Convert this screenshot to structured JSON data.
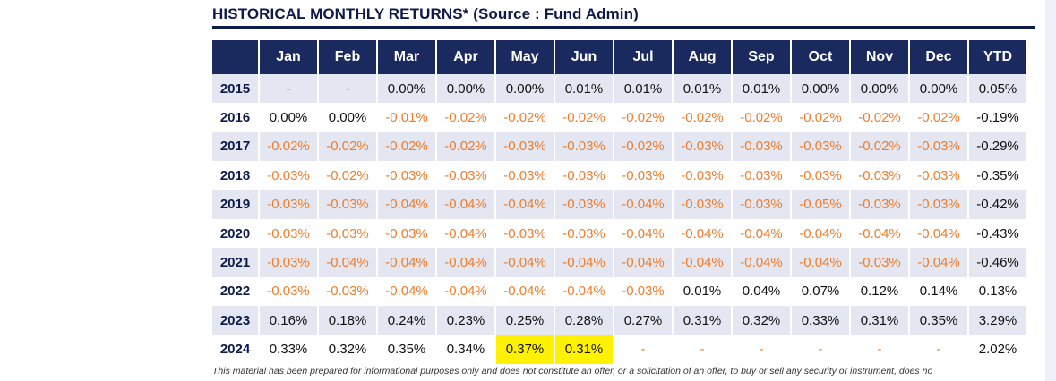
{
  "title": "HISTORICAL MONTHLY RETURNS* (Source : Fund Admin)",
  "columns": [
    "",
    "Jan",
    "Feb",
    "Mar",
    "Apr",
    "May",
    "Jun",
    "Jul",
    "Aug",
    "Sep",
    "Oct",
    "Nov",
    "Dec",
    "YTD"
  ],
  "rows": [
    {
      "year": "2015",
      "values": [
        "-",
        "-",
        "0.00%",
        "0.00%",
        "0.00%",
        "0.01%",
        "0.01%",
        "0.01%",
        "0.01%",
        "0.00%",
        "0.00%",
        "0.00%",
        "0.05%"
      ]
    },
    {
      "year": "2016",
      "values": [
        "0.00%",
        "0.00%",
        "-0.01%",
        "-0.02%",
        "-0.02%",
        "-0.02%",
        "-0.02%",
        "-0.02%",
        "-0.02%",
        "-0.02%",
        "-0.02%",
        "-0.02%",
        "-0.19%"
      ]
    },
    {
      "year": "2017",
      "values": [
        "-0.02%",
        "-0.02%",
        "-0.02%",
        "-0.02%",
        "-0.03%",
        "-0.03%",
        "-0.02%",
        "-0.03%",
        "-0.03%",
        "-0.03%",
        "-0.02%",
        "-0.03%",
        "-0.29%"
      ]
    },
    {
      "year": "2018",
      "values": [
        "-0.03%",
        "-0.02%",
        "-0.03%",
        "-0.03%",
        "-0.03%",
        "-0.03%",
        "-0.03%",
        "-0.03%",
        "-0.03%",
        "-0.03%",
        "-0.03%",
        "-0.03%",
        "-0.35%"
      ]
    },
    {
      "year": "2019",
      "values": [
        "-0.03%",
        "-0.03%",
        "-0.04%",
        "-0.04%",
        "-0.04%",
        "-0.03%",
        "-0.04%",
        "-0.03%",
        "-0.03%",
        "-0.05%",
        "-0.03%",
        "-0.03%",
        "-0.42%"
      ]
    },
    {
      "year": "2020",
      "values": [
        "-0.03%",
        "-0.03%",
        "-0.03%",
        "-0.04%",
        "-0.03%",
        "-0.03%",
        "-0.04%",
        "-0.04%",
        "-0.04%",
        "-0.04%",
        "-0.04%",
        "-0.04%",
        "-0.43%"
      ]
    },
    {
      "year": "2021",
      "values": [
        "-0.03%",
        "-0.04%",
        "-0.04%",
        "-0.04%",
        "-0.04%",
        "-0.04%",
        "-0.04%",
        "-0.04%",
        "-0.04%",
        "-0.04%",
        "-0.03%",
        "-0.04%",
        "-0.46%"
      ]
    },
    {
      "year": "2022",
      "values": [
        "-0.03%",
        "-0.03%",
        "-0.04%",
        "-0.04%",
        "-0.04%",
        "-0.04%",
        "-0.03%",
        "0.01%",
        "0.04%",
        "0.07%",
        "0.12%",
        "0.14%",
        "0.13%"
      ]
    },
    {
      "year": "2023",
      "values": [
        "0.16%",
        "0.18%",
        "0.24%",
        "0.23%",
        "0.25%",
        "0.28%",
        "0.27%",
        "0.31%",
        "0.32%",
        "0.33%",
        "0.31%",
        "0.35%",
        "3.29%"
      ]
    },
    {
      "year": "2024",
      "values": [
        "0.33%",
        "0.32%",
        "0.35%",
        "0.34%",
        "0.37%",
        "0.31%",
        "-",
        "-",
        "-",
        "-",
        "-",
        "-",
        "2.02%"
      ],
      "highlighted": [
        "May",
        "Jun"
      ]
    }
  ],
  "disclaimer": "This material has been prepared for informational purposes only and does not constitute an offer, or a solicitation of an offer, to buy or sell any security or instrument, does no",
  "colors": {
    "header_bg": "#1a2a5f",
    "shaded_row": "#e4e7f2",
    "negative": "#ee7d2b",
    "highlight": "#fff200",
    "title": "#0d1a4a"
  }
}
